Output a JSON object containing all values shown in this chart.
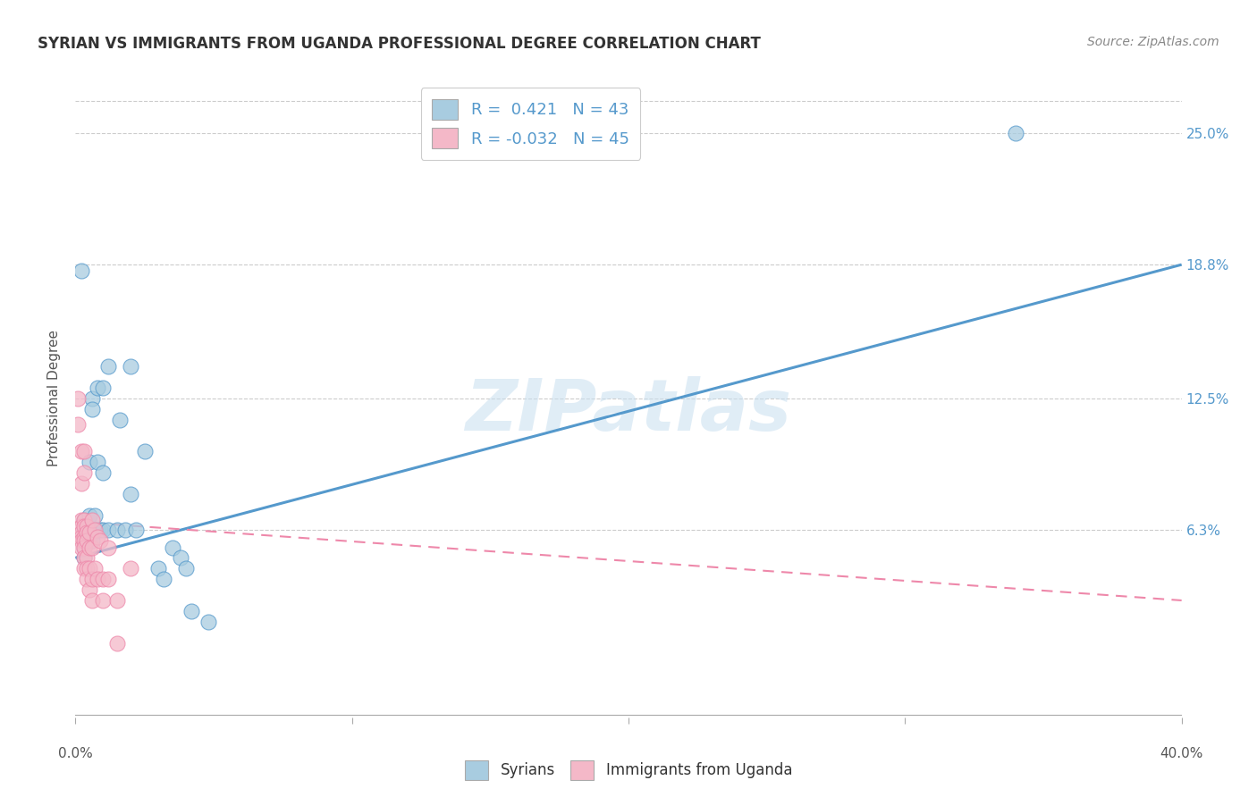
{
  "title": "SYRIAN VS IMMIGRANTS FROM UGANDA PROFESSIONAL DEGREE CORRELATION CHART",
  "source": "Source: ZipAtlas.com",
  "ylabel": "Professional Degree",
  "ytick_labels": [
    "6.3%",
    "12.5%",
    "18.8%",
    "25.0%"
  ],
  "ytick_values": [
    0.063,
    0.125,
    0.188,
    0.25
  ],
  "xlim": [
    0.0,
    0.4
  ],
  "ylim": [
    -0.025,
    0.275
  ],
  "watermark": "ZIPatlas",
  "blue_color": "#a8cce0",
  "pink_color": "#f4b8c8",
  "blue_line_color": "#5599cc",
  "pink_line_color": "#ee88aa",
  "syrian_r": 0.421,
  "uganda_r": -0.032,
  "syrian_n": 43,
  "uganda_n": 45,
  "blue_line_x0": 0.0,
  "blue_line_y0": 0.05,
  "blue_line_x1": 0.4,
  "blue_line_y1": 0.188,
  "pink_line_x0": 0.0,
  "pink_line_y0": 0.067,
  "pink_line_x1": 0.4,
  "pink_line_y1": 0.03,
  "syrian_points": [
    [
      0.002,
      0.185
    ],
    [
      0.003,
      0.063
    ],
    [
      0.003,
      0.068
    ],
    [
      0.003,
      0.055
    ],
    [
      0.003,
      0.05
    ],
    [
      0.004,
      0.065
    ],
    [
      0.004,
      0.063
    ],
    [
      0.004,
      0.062
    ],
    [
      0.004,
      0.06
    ],
    [
      0.004,
      0.058
    ],
    [
      0.005,
      0.095
    ],
    [
      0.005,
      0.07
    ],
    [
      0.005,
      0.063
    ],
    [
      0.005,
      0.06
    ],
    [
      0.006,
      0.125
    ],
    [
      0.006,
      0.12
    ],
    [
      0.006,
      0.063
    ],
    [
      0.006,
      0.058
    ],
    [
      0.007,
      0.07
    ],
    [
      0.008,
      0.13
    ],
    [
      0.008,
      0.095
    ],
    [
      0.008,
      0.063
    ],
    [
      0.009,
      0.063
    ],
    [
      0.01,
      0.13
    ],
    [
      0.01,
      0.09
    ],
    [
      0.01,
      0.063
    ],
    [
      0.012,
      0.14
    ],
    [
      0.012,
      0.063
    ],
    [
      0.015,
      0.063
    ],
    [
      0.016,
      0.115
    ],
    [
      0.018,
      0.063
    ],
    [
      0.02,
      0.14
    ],
    [
      0.02,
      0.08
    ],
    [
      0.022,
      0.063
    ],
    [
      0.025,
      0.1
    ],
    [
      0.03,
      0.045
    ],
    [
      0.032,
      0.04
    ],
    [
      0.035,
      0.055
    ],
    [
      0.038,
      0.05
    ],
    [
      0.04,
      0.045
    ],
    [
      0.042,
      0.025
    ],
    [
      0.048,
      0.02
    ],
    [
      0.34,
      0.25
    ]
  ],
  "uganda_points": [
    [
      0.001,
      0.125
    ],
    [
      0.001,
      0.113
    ],
    [
      0.002,
      0.1
    ],
    [
      0.002,
      0.085
    ],
    [
      0.002,
      0.068
    ],
    [
      0.002,
      0.065
    ],
    [
      0.002,
      0.062
    ],
    [
      0.002,
      0.06
    ],
    [
      0.002,
      0.058
    ],
    [
      0.002,
      0.055
    ],
    [
      0.003,
      0.1
    ],
    [
      0.003,
      0.09
    ],
    [
      0.003,
      0.068
    ],
    [
      0.003,
      0.065
    ],
    [
      0.003,
      0.06
    ],
    [
      0.003,
      0.058
    ],
    [
      0.003,
      0.055
    ],
    [
      0.003,
      0.05
    ],
    [
      0.003,
      0.045
    ],
    [
      0.004,
      0.065
    ],
    [
      0.004,
      0.062
    ],
    [
      0.004,
      0.058
    ],
    [
      0.004,
      0.05
    ],
    [
      0.004,
      0.045
    ],
    [
      0.004,
      0.04
    ],
    [
      0.005,
      0.062
    ],
    [
      0.005,
      0.055
    ],
    [
      0.005,
      0.045
    ],
    [
      0.005,
      0.035
    ],
    [
      0.006,
      0.068
    ],
    [
      0.006,
      0.055
    ],
    [
      0.006,
      0.04
    ],
    [
      0.006,
      0.03
    ],
    [
      0.007,
      0.063
    ],
    [
      0.007,
      0.045
    ],
    [
      0.008,
      0.06
    ],
    [
      0.008,
      0.04
    ],
    [
      0.009,
      0.058
    ],
    [
      0.01,
      0.04
    ],
    [
      0.01,
      0.03
    ],
    [
      0.012,
      0.055
    ],
    [
      0.012,
      0.04
    ],
    [
      0.015,
      0.03
    ],
    [
      0.015,
      0.01
    ],
    [
      0.02,
      0.045
    ]
  ]
}
